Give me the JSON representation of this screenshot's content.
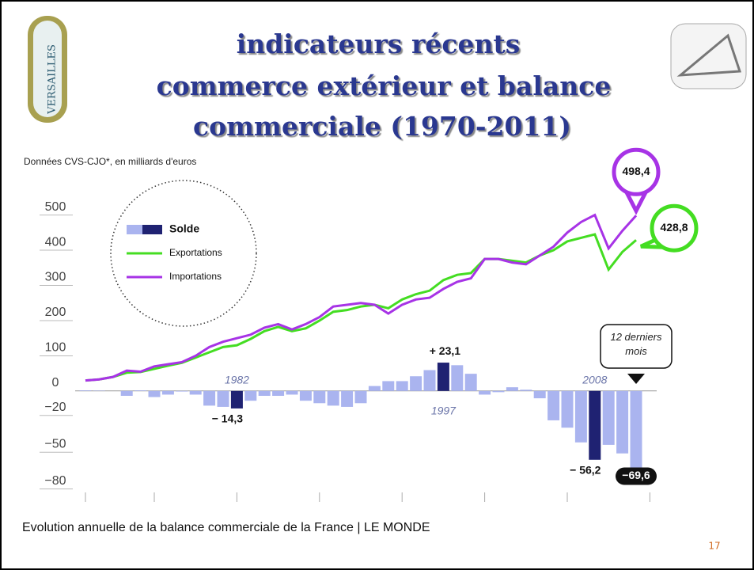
{
  "slide": {
    "title_lines": [
      "indicateurs récents",
      "commerce extérieur et balance",
      "commerciale (1970-2011)"
    ],
    "logo_left": "VERSAILLES",
    "caption": "Evolution annuelle de la balance commerciale de la France | LE MONDE",
    "page_number": "17"
  },
  "chart_data": {
    "type": "bar-line",
    "subtitle": "Données CVS-CJO*, en milliards d'euros",
    "categories": [
      null,
      null,
      null,
      null,
      null,
      null,
      null,
      null,
      null,
      null,
      null,
      "1982",
      null,
      null,
      null,
      null,
      null,
      null,
      null,
      null,
      null,
      null,
      null,
      null,
      null,
      null,
      "1997",
      null,
      null,
      null,
      null,
      null,
      null,
      null,
      null,
      null,
      null,
      "2008",
      null,
      null,
      null
    ],
    "annotation": "12 derniers mois",
    "series": [
      {
        "name": "Solde",
        "type": "bar",
        "axis": "y2",
        "color": "#aab4ef",
        "colors": [
          "#aab4ef",
          "#aab4ef",
          "#aab4ef",
          "#aab4ef",
          "#aab4ef",
          "#aab4ef",
          "#aab4ef",
          "#aab4ef",
          "#aab4ef",
          "#aab4ef",
          "#aab4ef",
          "#1f2272",
          "#aab4ef",
          "#aab4ef",
          "#aab4ef",
          "#aab4ef",
          "#aab4ef",
          "#aab4ef",
          "#aab4ef",
          "#aab4ef",
          "#aab4ef",
          "#aab4ef",
          "#aab4ef",
          "#aab4ef",
          "#aab4ef",
          "#aab4ef",
          "#1f2272",
          "#aab4ef",
          "#aab4ef",
          "#aab4ef",
          "#aab4ef",
          "#aab4ef",
          "#aab4ef",
          "#aab4ef",
          "#aab4ef",
          "#aab4ef",
          "#aab4ef",
          "#1f2272",
          "#aab4ef",
          "#aab4ef",
          "#aab4ef"
        ],
        "values": [
          0.5,
          0.3,
          0,
          -4,
          0.5,
          -5,
          -3,
          -0.5,
          -3,
          -12,
          -13,
          -14.3,
          -8,
          -4,
          -4,
          -3,
          -8,
          -10,
          -12,
          -13,
          -10,
          4,
          8,
          8,
          12,
          17,
          23.1,
          21,
          14,
          -3,
          -1,
          3,
          1,
          -6,
          -24,
          -30,
          -42,
          -56.2,
          -44,
          -51,
          -69.6
        ],
        "value_labels": [
          null,
          null,
          null,
          null,
          null,
          null,
          null,
          null,
          null,
          null,
          null,
          "− 14,3",
          null,
          null,
          null,
          null,
          null,
          null,
          null,
          null,
          null,
          null,
          null,
          null,
          null,
          null,
          "+ 23,1",
          null,
          null,
          null,
          null,
          null,
          null,
          null,
          null,
          null,
          null,
          "− 56,2",
          null,
          null,
          "−69,6"
        ]
      },
      {
        "name": "Exportations",
        "type": "line",
        "color": "#44dd22",
        "values": [
          30,
          33,
          40,
          52,
          54,
          63,
          72,
          80,
          95,
          110,
          125,
          130,
          148,
          170,
          182,
          170,
          178,
          200,
          225,
          230,
          240,
          245,
          235,
          260,
          275,
          285,
          315,
          330,
          335,
          375,
          375,
          370,
          365,
          385,
          400,
          425,
          435,
          445,
          345,
          395,
          428.8
        ],
        "value_labels": [
          null,
          null,
          null,
          null,
          null,
          null,
          null,
          null,
          null,
          null,
          null,
          null,
          null,
          null,
          null,
          null,
          null,
          null,
          null,
          null,
          null,
          null,
          null,
          null,
          null,
          null,
          null,
          null,
          null,
          null,
          null,
          null,
          null,
          null,
          null,
          null,
          null,
          null,
          null,
          null,
          "428,8"
        ]
      },
      {
        "name": "Importations",
        "type": "line",
        "color": "#a733e6",
        "values": [
          30,
          33,
          40,
          58,
          55,
          70,
          76,
          82,
          100,
          125,
          140,
          150,
          160,
          180,
          190,
          175,
          190,
          210,
          240,
          245,
          250,
          245,
          220,
          245,
          260,
          265,
          290,
          310,
          320,
          375,
          375,
          365,
          360,
          385,
          410,
          450,
          480,
          500,
          405,
          455,
          498.4
        ],
        "value_labels": [
          null,
          null,
          null,
          null,
          null,
          null,
          null,
          null,
          null,
          null,
          null,
          null,
          null,
          null,
          null,
          null,
          null,
          null,
          null,
          null,
          null,
          null,
          null,
          null,
          null,
          null,
          null,
          null,
          null,
          null,
          null,
          null,
          null,
          null,
          null,
          null,
          null,
          null,
          null,
          null,
          "498,4"
        ]
      }
    ],
    "ylim": [
      -306,
      571
    ],
    "yticks": [
      0,
      100,
      200,
      300,
      400,
      500
    ],
    "y2lim": [
      -88,
      164
    ],
    "y2ticks": [
      {
        "value": -20,
        "label": "−20"
      },
      {
        "value": -50,
        "label": "−50"
      },
      {
        "value": -80,
        "label": "−80"
      }
    ],
    "grid": true
  }
}
